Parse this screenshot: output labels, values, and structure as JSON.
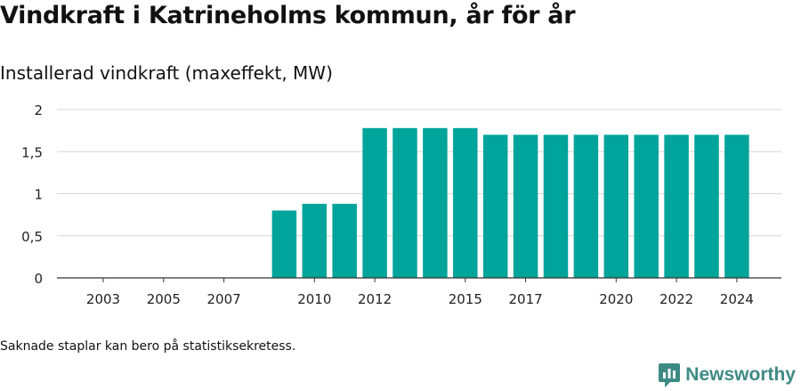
{
  "title": "Vindkraft i Katrineholms kommun, år för år",
  "subtitle": "Installerad vindkraft (maxeffekt, MW)",
  "footnote": "Saknade staplar kan bero på statistiksekretess.",
  "brand": {
    "name": "Newsworthy",
    "icon": "newsworthy-logo-icon",
    "color": "#3e8a84"
  },
  "colors": {
    "bar": "#00a49a",
    "grid": "#d6d6d6",
    "axis": "#333333"
  },
  "chart_data": {
    "type": "bar",
    "x": [
      2003,
      2004,
      2005,
      2006,
      2007,
      2008,
      2009,
      2010,
      2011,
      2012,
      2013,
      2014,
      2015,
      2016,
      2017,
      2018,
      2019,
      2020,
      2021,
      2022,
      2023,
      2024
    ],
    "values": [
      null,
      null,
      null,
      null,
      null,
      null,
      0.8,
      0.88,
      0.88,
      1.78,
      1.78,
      1.78,
      1.78,
      1.7,
      1.7,
      1.7,
      1.7,
      1.7,
      1.7,
      1.7,
      1.7,
      1.7
    ],
    "x_tick_labels": [
      "2003",
      "2005",
      "2007",
      "2010",
      "2012",
      "2015",
      "2017",
      "2020",
      "2022",
      "2024"
    ],
    "y_ticks": [
      0,
      0.5,
      1,
      1.5,
      2
    ],
    "y_tick_labels": [
      "0",
      "0,5",
      "1",
      "1,5",
      "2"
    ],
    "ylim": [
      0,
      2
    ],
    "grid": true,
    "legend": "none"
  }
}
